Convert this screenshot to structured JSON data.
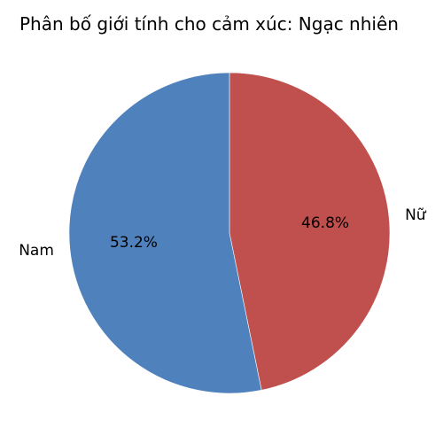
{
  "chart_data": {
    "type": "pie",
    "title": "Phân bố giới tính cho cảm xúc: Ngạc nhiên",
    "categories": [
      "Nữ",
      "Nam"
    ],
    "values": [
      46.8,
      53.2
    ],
    "value_labels": [
      "46.8%",
      "53.2%"
    ],
    "colors": [
      "#c0504d",
      "#4f81bd"
    ],
    "start_angle_deg": 90,
    "direction": "clockwise",
    "legend": "none"
  }
}
